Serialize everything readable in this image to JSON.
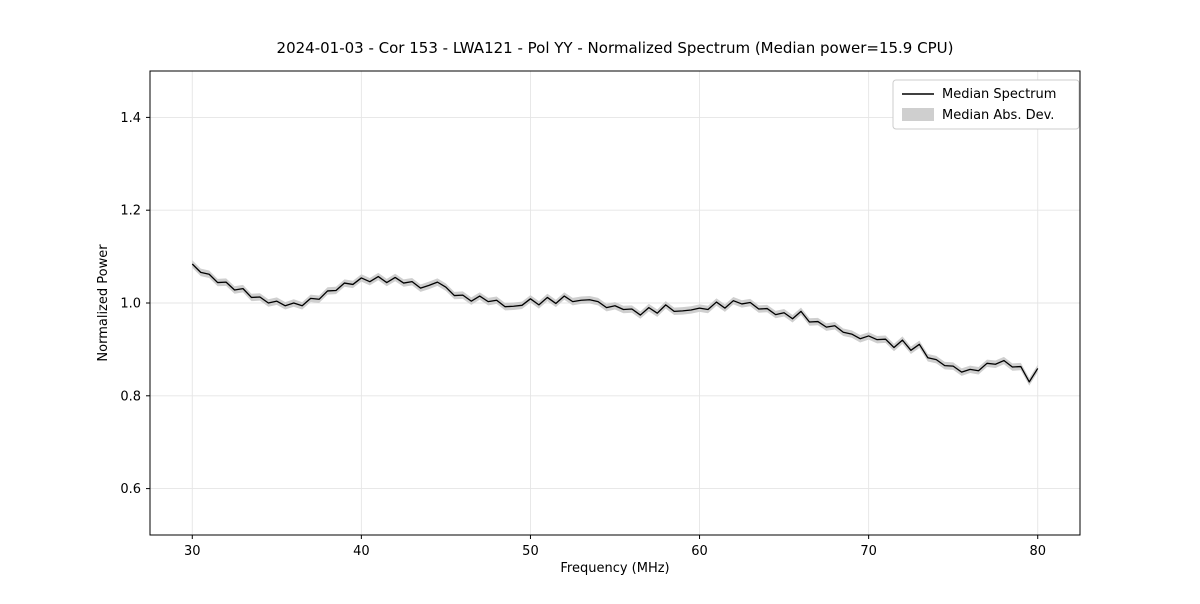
{
  "chart_data": {
    "type": "line",
    "title": "2024-01-03 - Cor 153 - LWA121 - Pol YY - Normalized Spectrum (Median power=15.9 CPU)",
    "xlabel": "Frequency (MHz)",
    "ylabel": "Normalized Power",
    "xlim": [
      27.5,
      82.5
    ],
    "ylim": [
      0.5,
      1.5
    ],
    "xticks": [
      30,
      40,
      50,
      60,
      70,
      80
    ],
    "yticks": [
      0.6,
      0.8,
      1.0,
      1.2,
      1.4
    ],
    "grid": true,
    "colors": {
      "line": "#000000",
      "band": "#cfcfcf",
      "grid": "#e5e5e5",
      "frame": "#000000",
      "legend_border": "#cccccc"
    },
    "legend": {
      "position": "upper right",
      "entries": [
        {
          "label": "Median Spectrum",
          "type": "line",
          "color": "#000000"
        },
        {
          "label": "Median Abs. Dev.",
          "type": "band",
          "color": "#cfcfcf"
        }
      ]
    },
    "series": [
      {
        "name": "Median Spectrum",
        "color": "#000000",
        "x": [
          30,
          30.5,
          31,
          31.5,
          32,
          32.5,
          33,
          33.5,
          34,
          34.5,
          35,
          35.5,
          36,
          36.5,
          37,
          37.5,
          38,
          38.5,
          39,
          39.5,
          40,
          40.5,
          41,
          41.5,
          42,
          42.5,
          43,
          43.5,
          44,
          44.5,
          45,
          45.5,
          46,
          46.5,
          47,
          47.5,
          48,
          48.5,
          49,
          49.5,
          50,
          50.5,
          51,
          51.5,
          52,
          52.5,
          53,
          53.5,
          54,
          54.5,
          55,
          55.5,
          56,
          56.5,
          57,
          57.5,
          58,
          58.5,
          59,
          59.5,
          60,
          60.5,
          61,
          61.5,
          62,
          62.5,
          63,
          63.5,
          64,
          64.5,
          65,
          65.5,
          66,
          66.5,
          67,
          67.5,
          68,
          68.5,
          69,
          69.5,
          70,
          70.5,
          71,
          71.5,
          72,
          72.5,
          73,
          73.5,
          74,
          74.5,
          75,
          75.5,
          76,
          76.5,
          77,
          77.5,
          78,
          78.5,
          79,
          79.5,
          80
        ],
        "y": [
          1.084,
          1.066,
          1.062,
          1.044,
          1.045,
          1.028,
          1.031,
          1.012,
          1.013,
          1.0,
          1.004,
          0.994,
          1.0,
          0.994,
          1.01,
          1.008,
          1.026,
          1.027,
          1.043,
          1.04,
          1.054,
          1.046,
          1.057,
          1.044,
          1.055,
          1.043,
          1.046,
          1.032,
          1.038,
          1.045,
          1.034,
          1.016,
          1.017,
          1.004,
          1.015,
          1.003,
          1.006,
          0.992,
          0.993,
          0.995,
          1.009,
          0.996,
          1.012,
          0.999,
          1.015,
          1.003,
          1.006,
          1.007,
          1.003,
          0.99,
          0.994,
          0.986,
          0.987,
          0.974,
          0.99,
          0.978,
          0.996,
          0.982,
          0.983,
          0.985,
          0.989,
          0.986,
          1.002,
          0.989,
          1.005,
          0.998,
          1.001,
          0.987,
          0.988,
          0.975,
          0.979,
          0.966,
          0.982,
          0.959,
          0.96,
          0.948,
          0.951,
          0.937,
          0.933,
          0.923,
          0.929,
          0.921,
          0.922,
          0.904,
          0.92,
          0.898,
          0.911,
          0.882,
          0.878,
          0.865,
          0.864,
          0.851,
          0.857,
          0.854,
          0.87,
          0.868,
          0.876,
          0.862,
          0.863,
          0.83,
          0.859
        ]
      },
      {
        "name": "Median Abs. Dev.",
        "type": "band",
        "color": "#cfcfcf",
        "half_width": 0.008
      }
    ]
  }
}
